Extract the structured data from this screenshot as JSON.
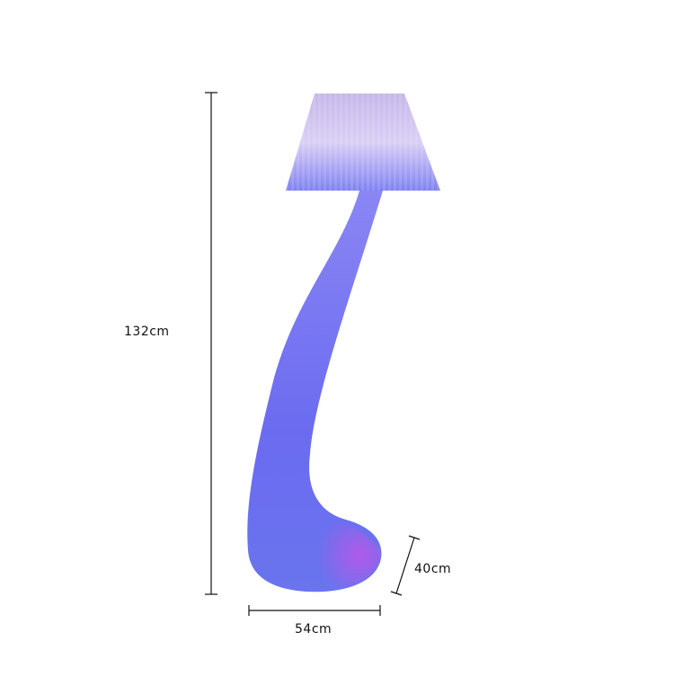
{
  "dimensions": {
    "height": "132cm",
    "width": "54cm",
    "depth": "40cm"
  },
  "colors": {
    "shade_top": "#b9a8e6",
    "shade_bottom": "#7d7cf0",
    "body": "#6e6cf2",
    "base_glow": "#a35ce6",
    "dimension_line": "#111111"
  }
}
